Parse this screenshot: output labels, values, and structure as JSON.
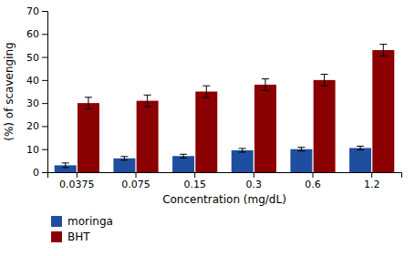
{
  "chart_data": {
    "type": "bar",
    "categories": [
      "0.0375",
      "0.075",
      "0.15",
      "0.3",
      "0.6",
      "1.2"
    ],
    "series": [
      {
        "name": "moringa",
        "color": "#1F4E9E",
        "values": [
          3,
          6,
          7,
          9.5,
          10,
          10.5
        ],
        "errors": [
          1.0,
          0.8,
          0.8,
          0.8,
          0.8,
          0.8
        ]
      },
      {
        "name": "BHT",
        "color": "#8B0000",
        "values": [
          30,
          31,
          35,
          38,
          40,
          53
        ],
        "errors": [
          2.5,
          2.5,
          2.5,
          2.5,
          2.5,
          2.5
        ]
      }
    ],
    "xlabel": "Concentration (mg/dL)",
    "ylabel": "(%) of scavenging",
    "ylim": [
      0,
      70
    ],
    "yticks": [
      0,
      10,
      20,
      30,
      40,
      50,
      60,
      70
    ],
    "legend": "bottom"
  }
}
